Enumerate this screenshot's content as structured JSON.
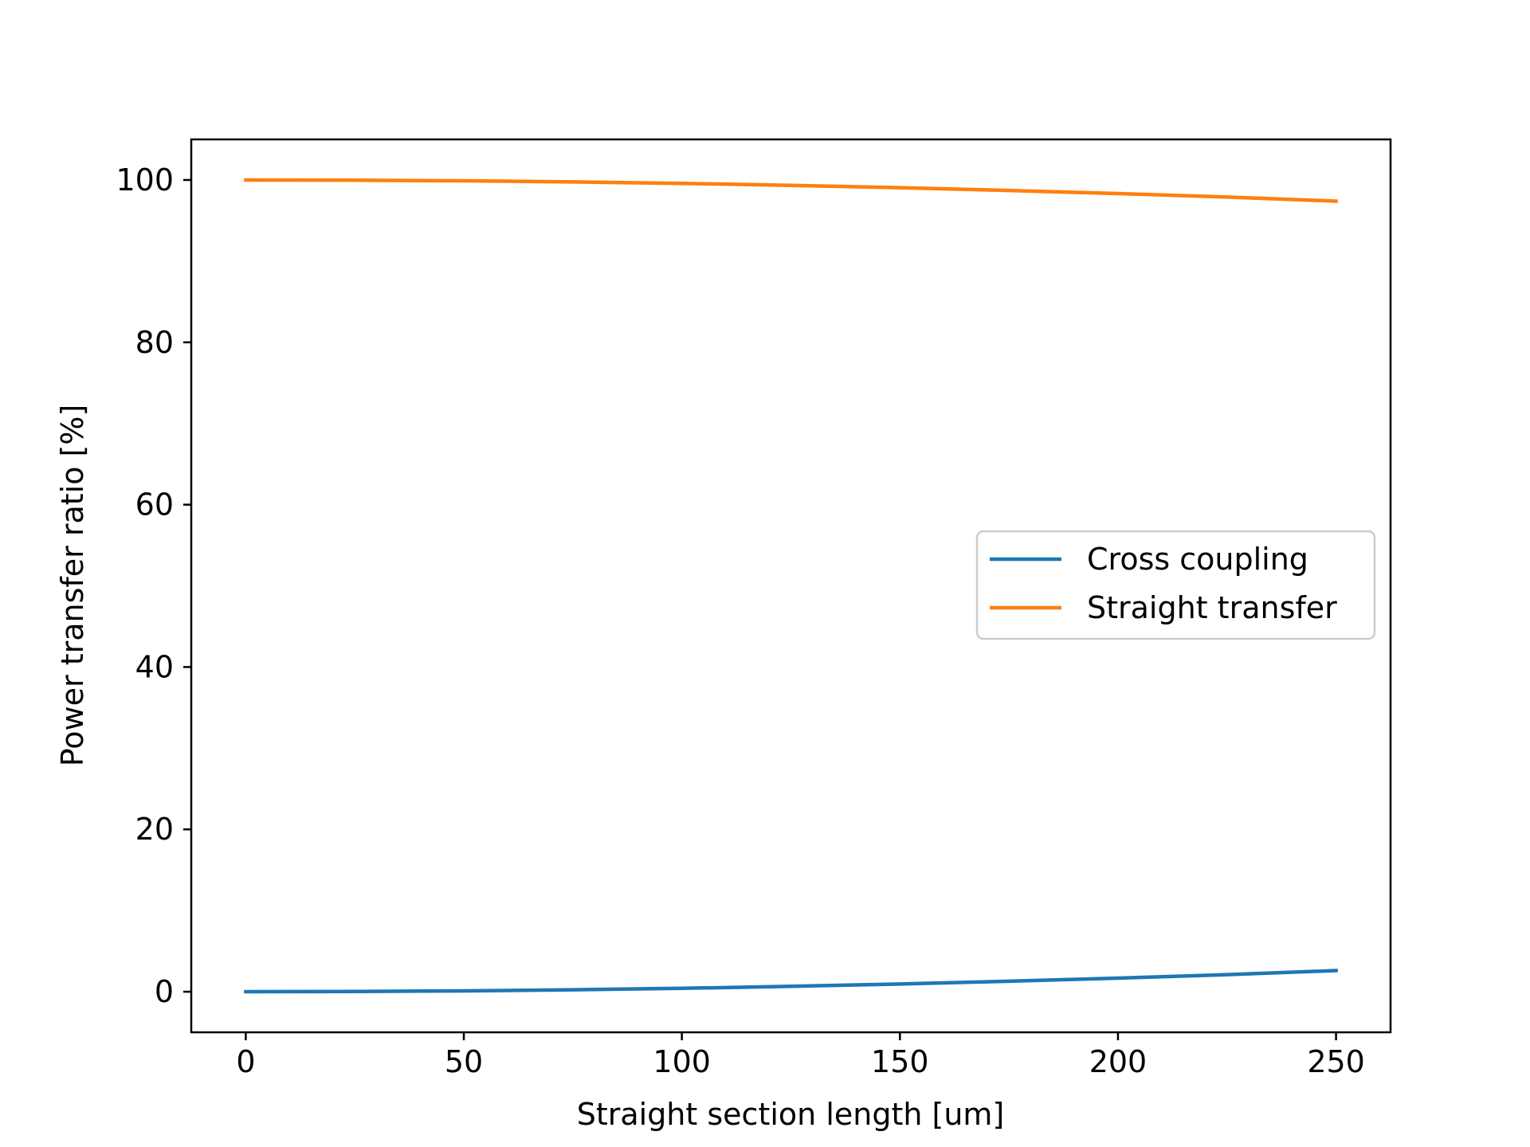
{
  "chart_data": {
    "type": "line",
    "title": "",
    "xlabel": "Straight section length [um]",
    "ylabel": "Power transfer ratio [%]",
    "xlim": [
      -12.5,
      262.5
    ],
    "ylim": [
      -5,
      105
    ],
    "xticks": [
      0,
      50,
      100,
      150,
      200,
      250
    ],
    "yticks": [
      0,
      20,
      40,
      60,
      80,
      100
    ],
    "grid": false,
    "legend_position": "center-right",
    "x": [
      0,
      25,
      50,
      75,
      100,
      125,
      150,
      175,
      200,
      225,
      250
    ],
    "series": [
      {
        "name": "Cross coupling",
        "color": "#1f77b4",
        "values": [
          0.0,
          0.03,
          0.1,
          0.24,
          0.42,
          0.66,
          0.95,
          1.29,
          1.67,
          2.1,
          2.6
        ]
      },
      {
        "name": "Straight transfer",
        "color": "#ff7f0e",
        "values": [
          100.0,
          99.97,
          99.9,
          99.76,
          99.58,
          99.34,
          99.05,
          98.71,
          98.33,
          97.9,
          97.4
        ]
      }
    ]
  }
}
